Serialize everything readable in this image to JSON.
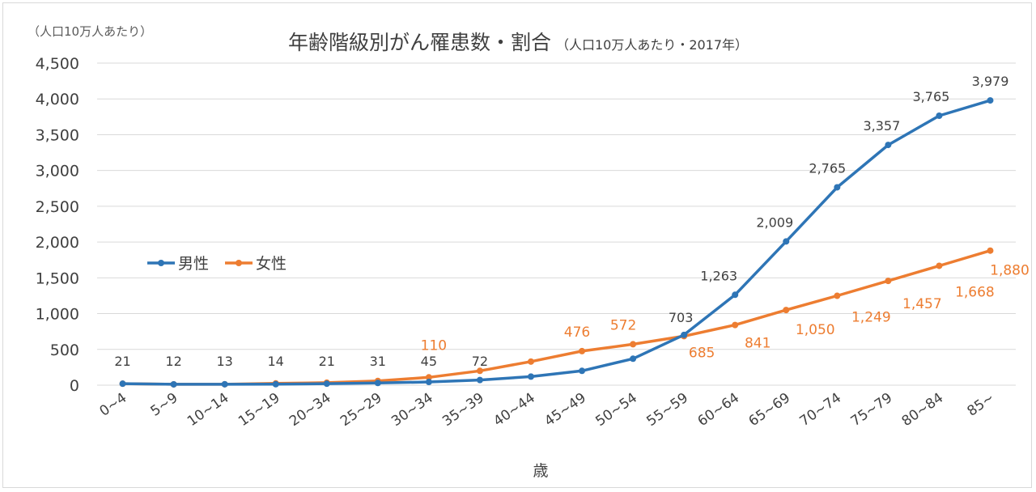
{
  "chart_data": {
    "type": "line",
    "title": "年齢階級別がん罹患数・割合",
    "subtitle": "（人口10万人あたり・2017年）",
    "unit_label": "（人口10万人あたり）",
    "xlabel": "歳",
    "ylabel": "",
    "ylim": [
      0,
      4500
    ],
    "yticks": [
      "0",
      "500",
      "1,000",
      "1,500",
      "2,000",
      "2,500",
      "3,000",
      "3,500",
      "4,000",
      "4,500"
    ],
    "ytick_values": [
      0,
      500,
      1000,
      1500,
      2000,
      2500,
      3000,
      3500,
      4000,
      4500
    ],
    "categories": [
      "0~4",
      "5~9",
      "10~14",
      "15~19",
      "20~34",
      "25~29",
      "30~34",
      "35~39",
      "40~44",
      "45~49",
      "50~54",
      "55~59",
      "60~64",
      "65~69",
      "70~74",
      "75~79",
      "80~84",
      "85~"
    ],
    "grid": true,
    "legend_position": "left",
    "series": [
      {
        "name": "男性",
        "color": "#2e75b6",
        "values": [
          21,
          12,
          13,
          14,
          21,
          31,
          45,
          72,
          120,
          200,
          370,
          703,
          1263,
          2009,
          2765,
          3357,
          3765,
          3979
        ],
        "labels": [
          "21",
          "12",
          "13",
          "14",
          "21",
          "31",
          "45",
          "72",
          "",
          "",
          "",
          "703",
          "1,263",
          "2,009",
          "2,765",
          "3,357",
          "3,765",
          "3,979"
        ]
      },
      {
        "name": "女性",
        "color": "#ed7d31",
        "values": [
          21,
          12,
          13,
          25,
          35,
          60,
          110,
          200,
          330,
          476,
          572,
          685,
          841,
          1050,
          1249,
          1457,
          1668,
          1880
        ],
        "labels": [
          "",
          "",
          "",
          "",
          "",
          "",
          "110",
          "",
          "",
          "476",
          "572",
          "685",
          "841",
          "1,050",
          "1,249",
          "1,457",
          "1,668",
          "1,880"
        ]
      }
    ]
  }
}
